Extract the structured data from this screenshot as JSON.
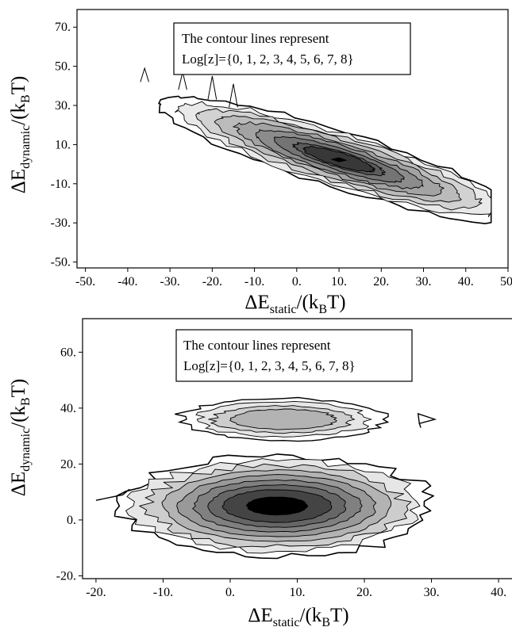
{
  "chart_data": [
    {
      "type": "contour",
      "id": "top",
      "annotation": [
        "The contour lines represent",
        "Log[z]={0, 1, 2, 3, 4, 5, 6, 7, 8}"
      ],
      "xlabel": {
        "main": "ΔE",
        "sub": "static",
        "tail": "/(k",
        "sub2": "B",
        "end": "T)"
      },
      "ylabel": {
        "main": "ΔE",
        "sub": "dynamic",
        "tail": "/(k",
        "sub2": "B",
        "end": "T)"
      },
      "xlim": [
        -52,
        50
      ],
      "ylim": [
        -53,
        79
      ],
      "xticks": [
        -50,
        -40,
        -30,
        -20,
        -10,
        0,
        10,
        20,
        30,
        40,
        50
      ],
      "xtick_labels": [
        "-50.",
        "-40.",
        "-30.",
        "-20.",
        "-10.",
        "0.",
        "10.",
        "20.",
        "30.",
        "40.",
        "50."
      ],
      "yticks": [
        -50,
        -30,
        -10,
        10,
        30,
        50,
        70
      ],
      "ytick_labels": [
        "-50.",
        "-30.",
        "-10.",
        "10.",
        "30.",
        "50.",
        "70."
      ],
      "levels": [
        0,
        1,
        2,
        3,
        4,
        5,
        6,
        7,
        8
      ],
      "fills": [
        "#ffffff",
        "#e9e9e9",
        "#d2d2d2",
        "#bbbbbb",
        "#a3a3a3",
        "#8c8c8c",
        "#747474",
        "#5c5c5c",
        "#383838"
      ],
      "ridge": {
        "x0": 10,
        "y0": 2.5,
        "slope": -0.72,
        "min_x": -38,
        "max_x": 46
      }
    },
    {
      "type": "contour",
      "id": "bottom",
      "annotation": [
        "The contour lines represent",
        "Log[z]={0, 1, 2, 3, 4, 5, 6, 7, 8}"
      ],
      "xlabel": {
        "main": "ΔE",
        "sub": "static",
        "tail": "/(k",
        "sub2": "B",
        "end": "T)"
      },
      "ylabel": {
        "main": "ΔE",
        "sub": "dynamic",
        "tail": "/(k",
        "sub2": "B",
        "end": "T)"
      },
      "xlim": [
        -22,
        42
      ],
      "ylim": [
        -21,
        72
      ],
      "xticks": [
        -20,
        -10,
        0,
        10,
        20,
        30,
        40
      ],
      "xtick_labels": [
        "-20.",
        "-10.",
        "0.",
        "10.",
        "20.",
        "30.",
        "40."
      ],
      "yticks": [
        -20,
        0,
        20,
        40,
        60
      ],
      "ytick_labels": [
        "-20.",
        "0.",
        "20.",
        "40.",
        "60."
      ],
      "levels": [
        0,
        1,
        2,
        3,
        4,
        5,
        6,
        7,
        8
      ],
      "fills": [
        "#ffffff",
        "#e6e6e6",
        "#cdcdcd",
        "#b3b3b3",
        "#999999",
        "#808080",
        "#666666",
        "#444444",
        "#000000"
      ],
      "main_blob": {
        "cx": 7,
        "cy": 5,
        "max_rx": 23.5,
        "max_ry": 18
      },
      "upper_band": {
        "cx": 8,
        "cy": 36,
        "max_rx": 15.5,
        "max_ry": 7.5
      }
    }
  ]
}
